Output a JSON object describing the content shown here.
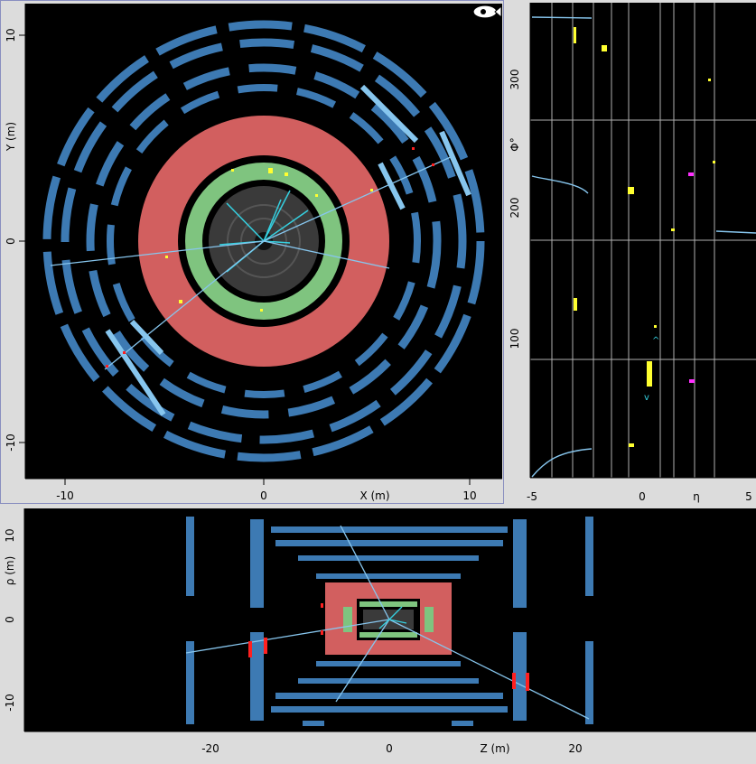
{
  "views": {
    "xy": {
      "x_label": "X (m)",
      "y_label": "Y (m)",
      "x_ticks": [
        "-10",
        "0",
        "10"
      ],
      "y_ticks": [
        "10",
        "0",
        "-10"
      ]
    },
    "phi_eta": {
      "x_label": "η",
      "y_label": "Φ°",
      "x_ticks": [
        "-5",
        "0",
        "5"
      ],
      "y_ticks": [
        "300",
        "200",
        "100"
      ]
    },
    "rho_z": {
      "x_label": "Z (m)",
      "y_label": "ρ (m)",
      "x_ticks": [
        "-20",
        "0",
        "20"
      ],
      "y_ticks": [
        "10",
        "0",
        "-10"
      ]
    }
  },
  "icons": {
    "logo": "fish-eye-icon"
  },
  "colors": {
    "background": "#000000",
    "frame": "#dcdcdc",
    "muon": "#3d7ab3",
    "muon_light": "#87c6ee",
    "hadronic_calo": "#d25f5f",
    "em_calo": "#7fc47f",
    "inner_detector": "#3a3a3a",
    "track": "#35d0e0",
    "deposit": "#ffff30",
    "missing_energy": "#ff30ff",
    "hit": "#ff2020"
  }
}
